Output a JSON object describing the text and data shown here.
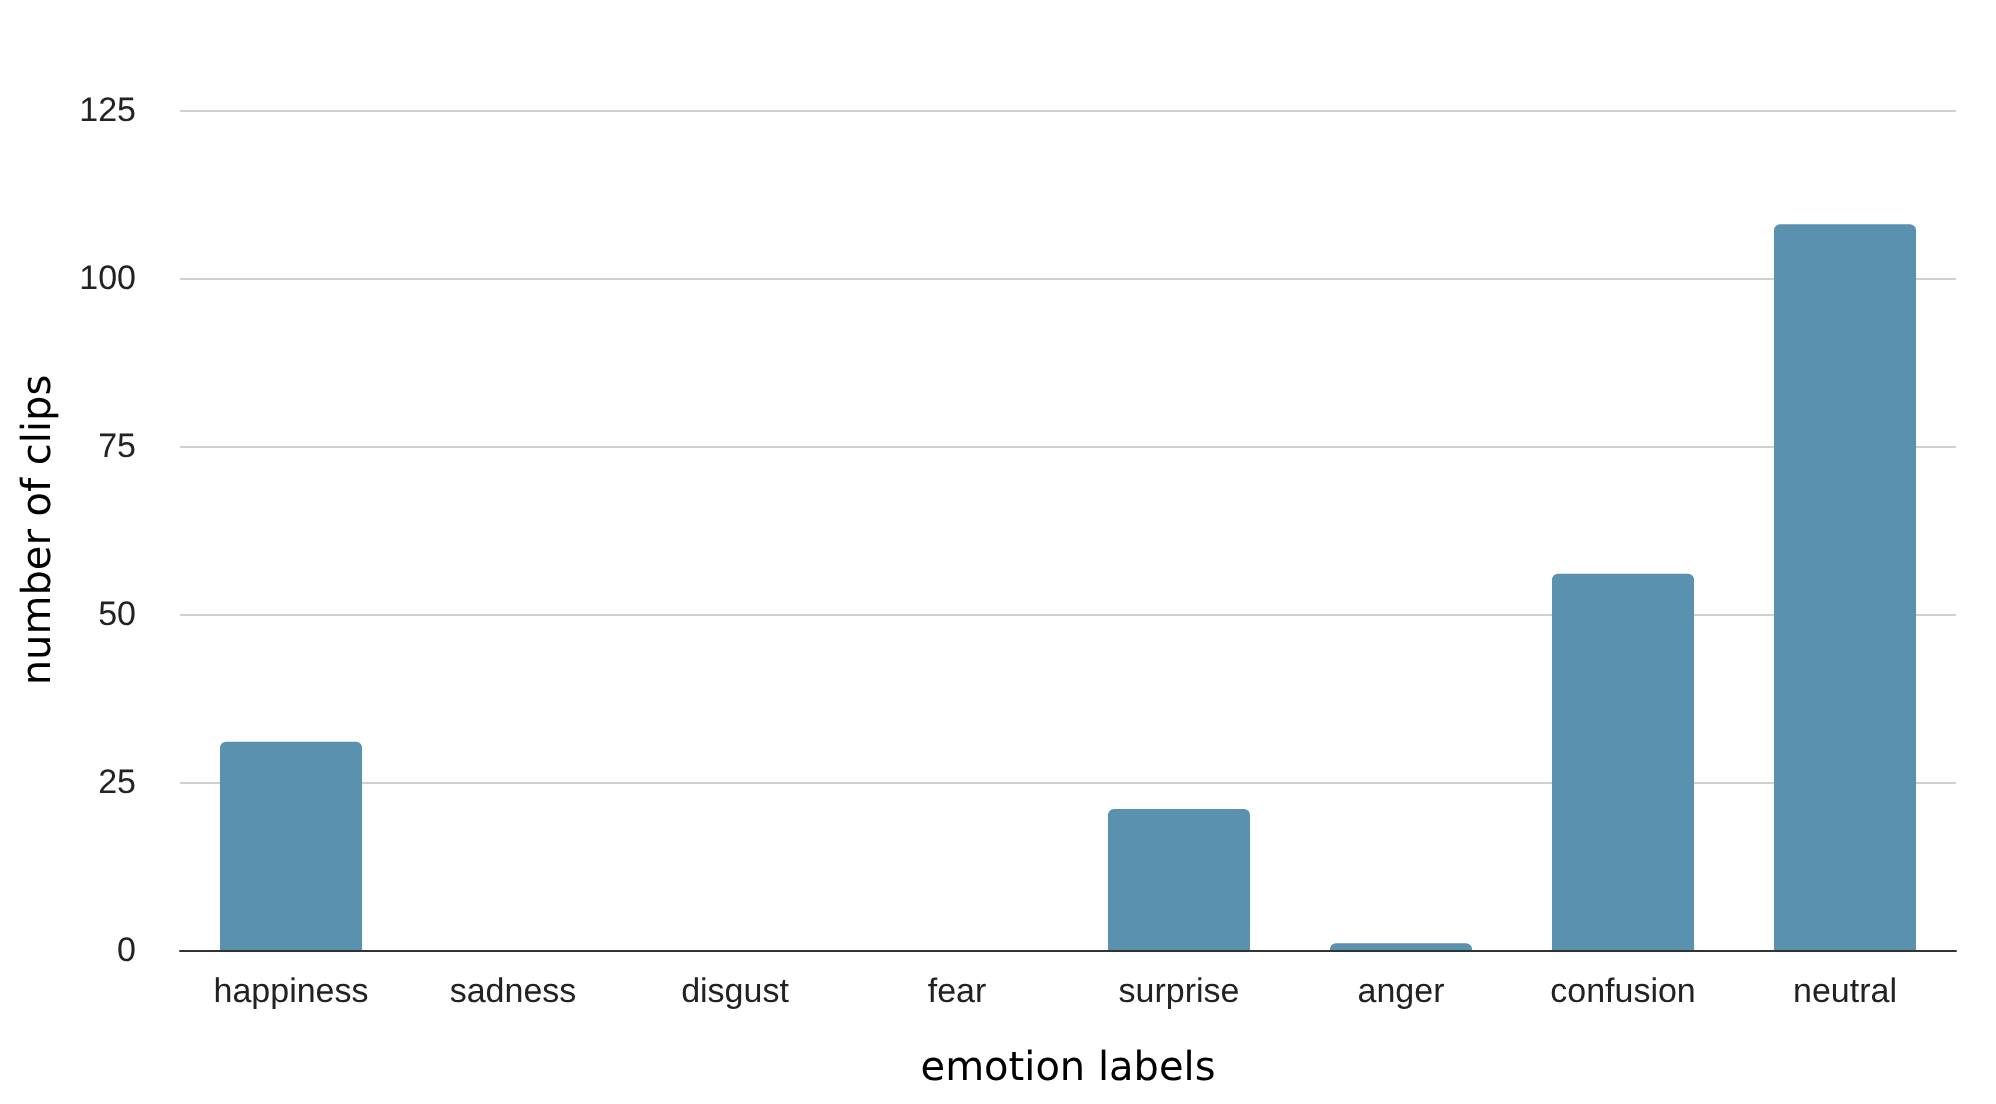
{
  "chart_data": {
    "type": "bar",
    "xlabel": "emotion labels",
    "ylabel": "number of clips",
    "categories": [
      "happiness",
      "sadness",
      "disgust",
      "fear",
      "surprise",
      "anger",
      "confusion",
      "neutral"
    ],
    "values": [
      31,
      0,
      0,
      0,
      21,
      1,
      56,
      108
    ],
    "color": "#5a91af",
    "ylim": [
      0,
      125
    ],
    "yticks": [
      0,
      25,
      50,
      75,
      100,
      125
    ],
    "grid": "y"
  }
}
